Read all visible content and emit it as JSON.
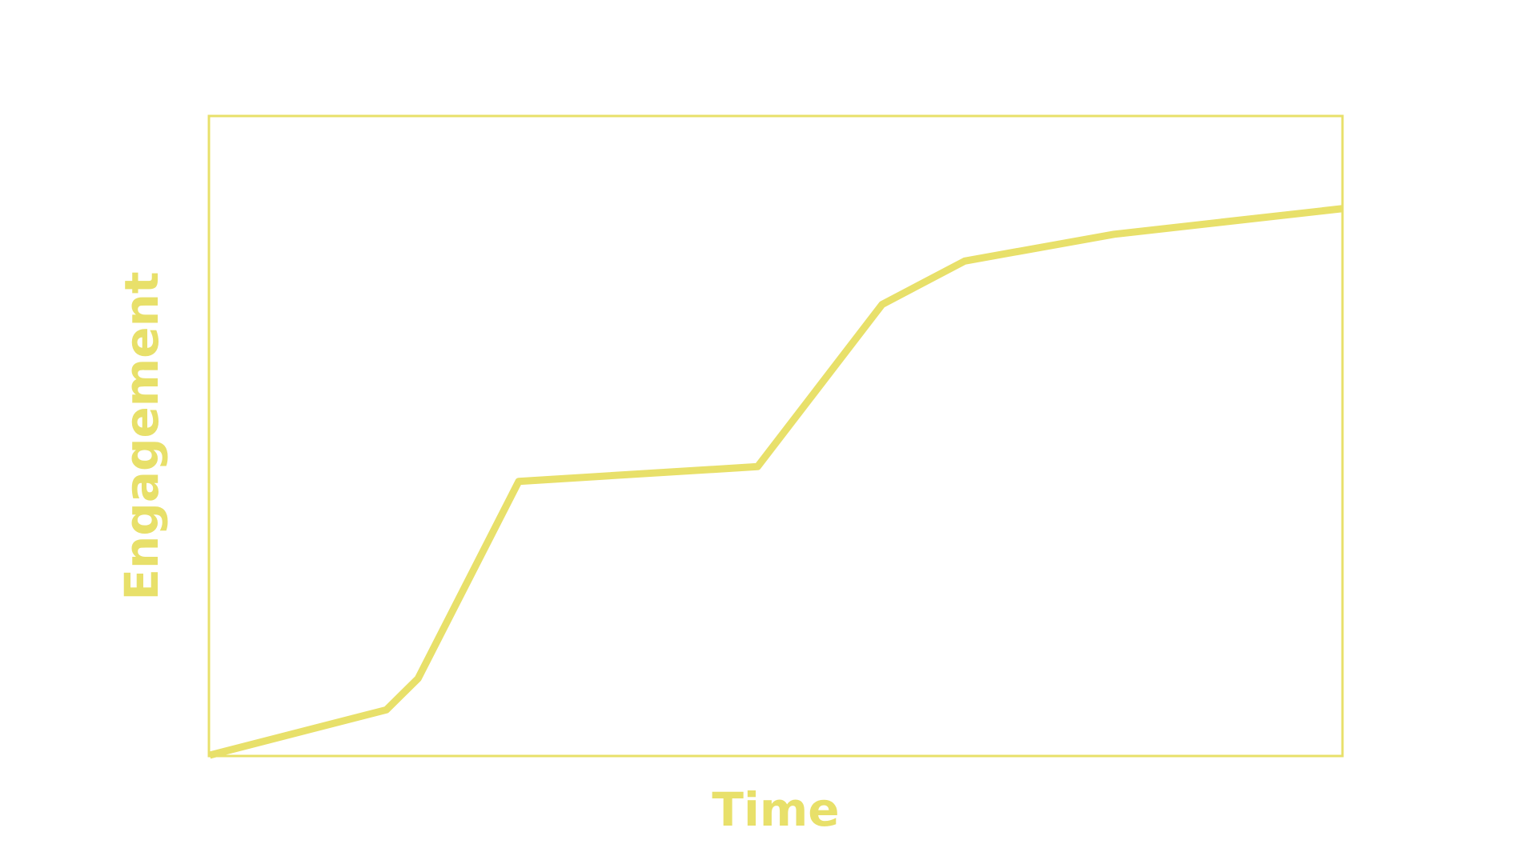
{
  "chart_data": {
    "type": "line",
    "title": "",
    "xlabel": "Time",
    "ylabel": "Engagement",
    "xlim": [
      0,
      100
    ],
    "ylim": [
      0,
      100
    ],
    "grid": false,
    "legend": "none",
    "show_ticks": false,
    "series": [
      {
        "x": [
          0,
          15.6,
          18.4,
          27.3,
          48.4,
          59.4,
          66.7,
          79.9,
          100
        ],
        "values": [
          0,
          7.1,
          12.0,
          42.9,
          45.2,
          70.6,
          77.4,
          81.6,
          85.6
        ]
      }
    ]
  },
  "colors": {
    "accent": "#E8E06A",
    "background": "#FFFFFF"
  }
}
